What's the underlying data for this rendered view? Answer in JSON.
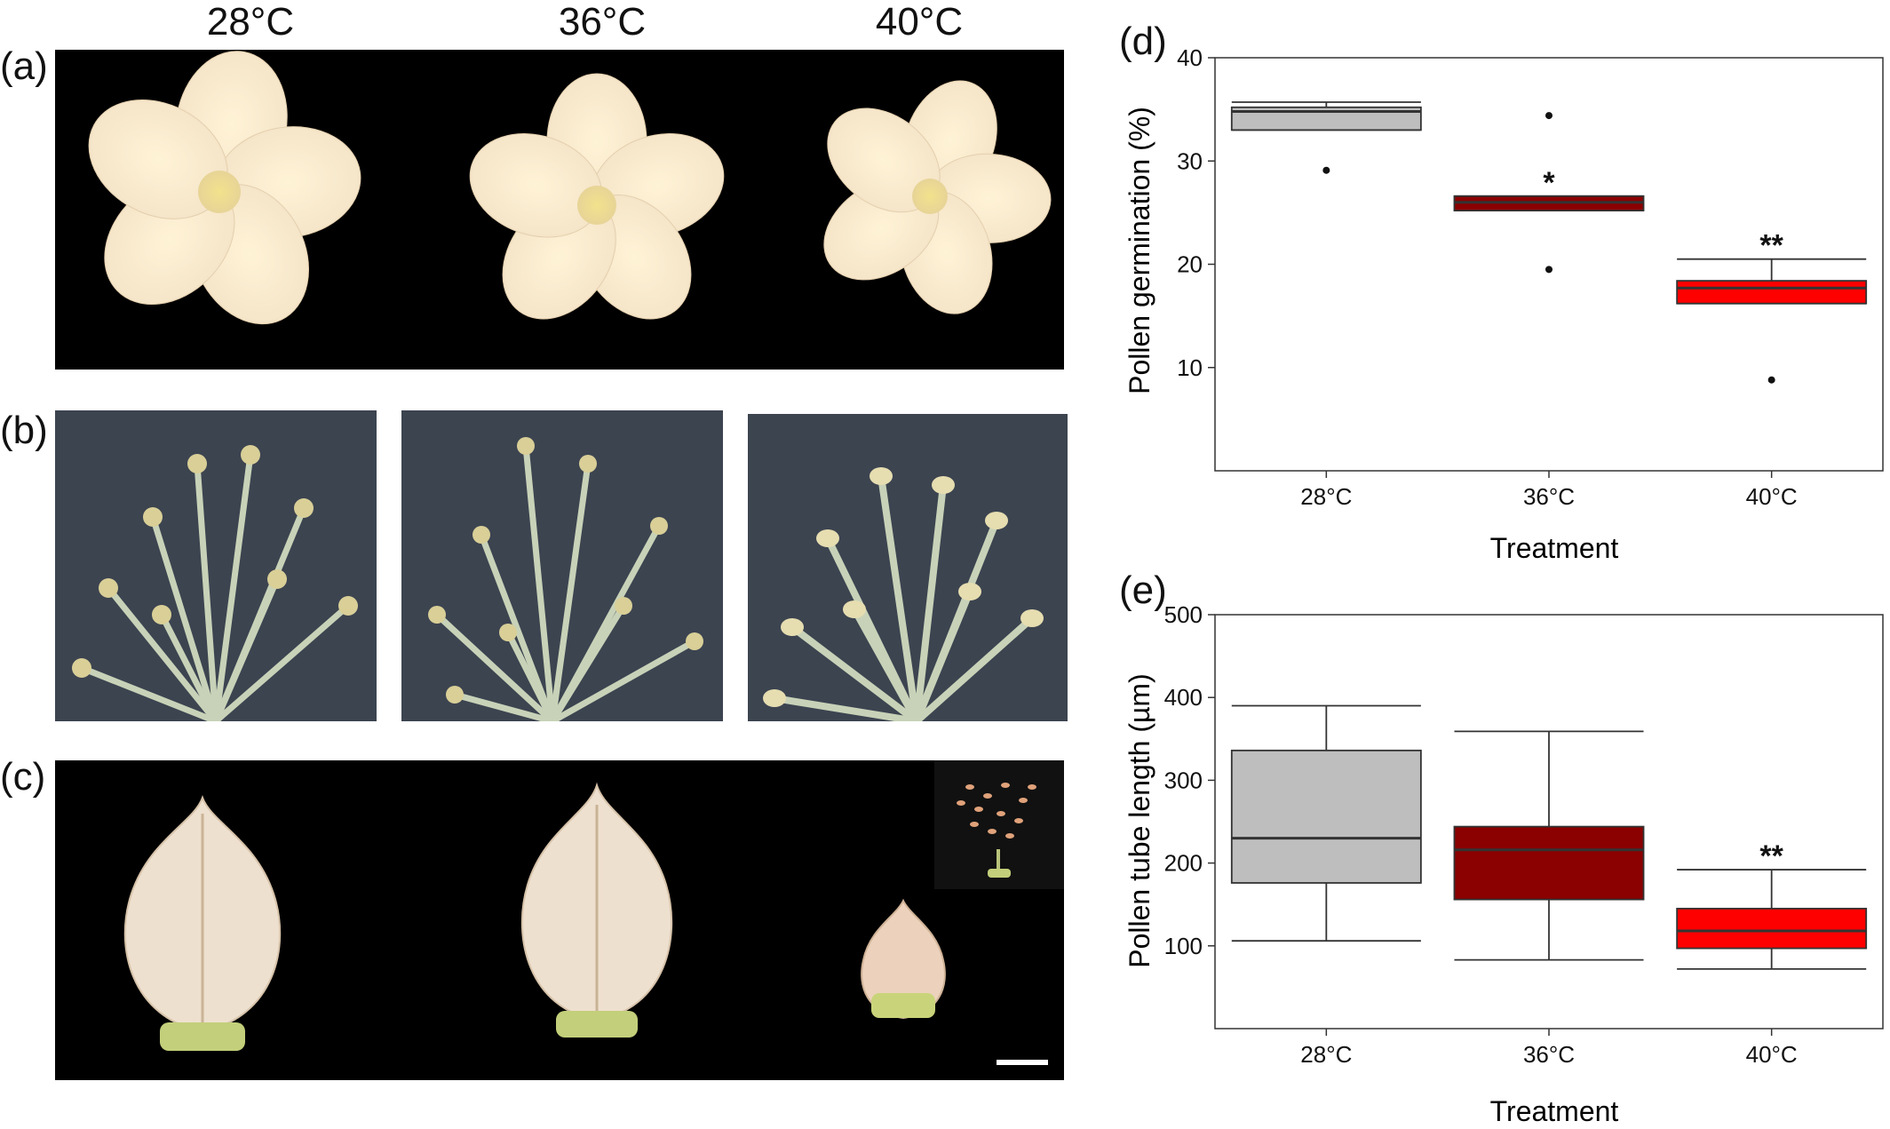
{
  "figure": {
    "column_labels": [
      "28°C",
      "36°C",
      "40°C"
    ],
    "panel_letters": {
      "a": "(a)",
      "b": "(b)",
      "c": "(c)",
      "d": "(d)",
      "e": "(e)"
    }
  },
  "chart_data": [
    {
      "type": "box",
      "panel": "(d)",
      "xlabel": "Treatment",
      "ylabel": "Pollen germination (%)",
      "categories": [
        "28°C",
        "36°C",
        "40°C"
      ],
      "ylim": [
        0,
        40
      ],
      "yticks": [
        10,
        20,
        30,
        40
      ],
      "grid": false,
      "boxes": [
        {
          "name": "28°C",
          "color": "#bebebe",
          "whisker_low": 33.0,
          "q1": 33.0,
          "median": 34.8,
          "q3": 35.2,
          "whisker_high": 35.7,
          "outliers": [
            29.1
          ],
          "significance": ""
        },
        {
          "name": "36°C",
          "color": "#8b0000",
          "whisker_low": 25.2,
          "q1": 25.2,
          "median": 26.0,
          "q3": 26.6,
          "whisker_high": 26.6,
          "outliers": [
            34.4,
            19.5
          ],
          "significance": "*"
        },
        {
          "name": "40°C",
          "color": "#ff0000",
          "whisker_low": 16.2,
          "q1": 16.2,
          "median": 17.7,
          "q3": 18.4,
          "whisker_high": 20.5,
          "outliers": [
            8.8
          ],
          "significance": "**"
        }
      ]
    },
    {
      "type": "box",
      "panel": "(e)",
      "xlabel": "Treatment",
      "ylabel": "Pollen tube length (µm)",
      "categories": [
        "28°C",
        "36°C",
        "40°C"
      ],
      "ylim": [
        0,
        500
      ],
      "yticks": [
        100,
        200,
        300,
        400,
        500
      ],
      "grid": false,
      "boxes": [
        {
          "name": "28°C",
          "color": "#bebebe",
          "whisker_low": 106,
          "q1": 176,
          "median": 230,
          "q3": 336,
          "whisker_high": 390,
          "outliers": [],
          "significance": ""
        },
        {
          "name": "36°C",
          "color": "#8b0000",
          "whisker_low": 83,
          "q1": 156,
          "median": 216,
          "q3": 244,
          "whisker_high": 359,
          "outliers": [],
          "significance": ""
        },
        {
          "name": "40°C",
          "color": "#ff0000",
          "whisker_low": 72,
          "q1": 97,
          "median": 118,
          "q3": 145,
          "whisker_high": 192,
          "outliers": [],
          "significance": "**"
        }
      ]
    }
  ]
}
